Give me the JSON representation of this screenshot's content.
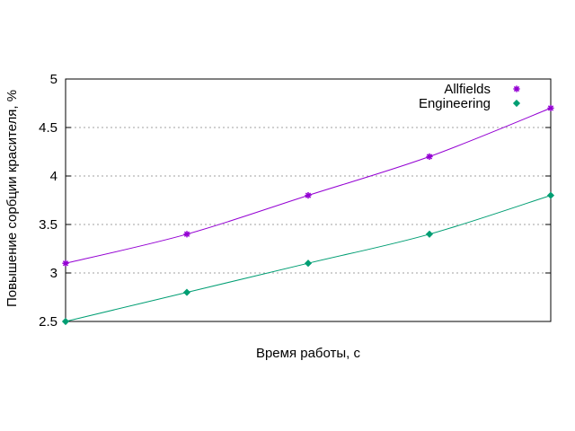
{
  "chart_data": {
    "type": "line",
    "title": "",
    "xlabel": "Время работы, с",
    "ylabel": "Повышение сорбции красителя, %",
    "ylim": [
      2.5,
      5
    ],
    "yticks": [
      "2.5",
      "3",
      "3.5",
      "4",
      "4.5",
      "5"
    ],
    "xticks": [],
    "grid": "horizontal-dashed",
    "legend_position": "top-right",
    "x": [
      0,
      1,
      2,
      3,
      4
    ],
    "series": [
      {
        "name": "Allfields",
        "values": [
          3.1,
          3.4,
          3.8,
          4.2,
          4.7
        ],
        "color": "#9400d3",
        "marker": "asterisk"
      },
      {
        "name": "Engineering",
        "values": [
          2.5,
          2.8,
          3.1,
          3.4,
          3.8
        ],
        "color": "#009e73",
        "marker": "diamond"
      }
    ]
  }
}
